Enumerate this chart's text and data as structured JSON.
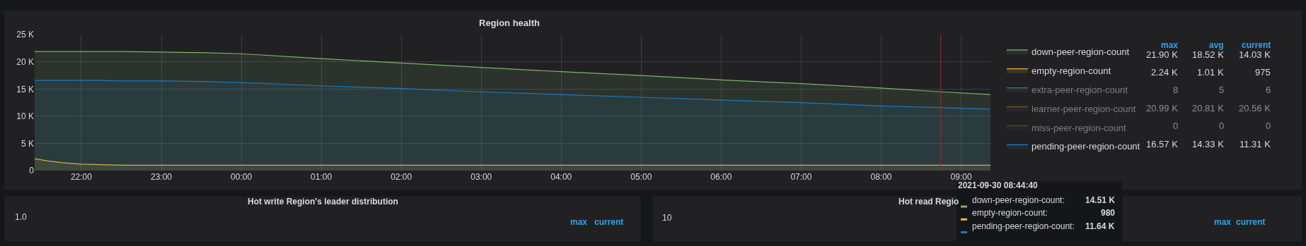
{
  "chart_data": [
    {
      "type": "area",
      "title": "Region health",
      "x": [
        "2021-09-29T21:25",
        "2021-09-29T21:35",
        "2021-09-29T21:45",
        "2021-09-29T22:00",
        "2021-09-29T22:15",
        "2021-09-29T22:30",
        "2021-09-29T23:00",
        "2021-09-29T23:30",
        "2021-09-30T00:00",
        "2021-09-30T01:00",
        "2021-09-30T02:00",
        "2021-09-30T03:00",
        "2021-09-30T04:00",
        "2021-09-30T05:00",
        "2021-09-30T06:00",
        "2021-09-30T07:00",
        "2021-09-30T08:00",
        "2021-09-30T08:44:40",
        "2021-09-30T09:22"
      ],
      "series": [
        {
          "name": "down-peer-region-count",
          "color": "#7eb26d",
          "values": [
            21900,
            21900,
            21900,
            21900,
            21900,
            21900,
            21800,
            21700,
            21500,
            20600,
            19800,
            19000,
            18200,
            17500,
            16700,
            16000,
            15200,
            14500,
            14000
          ]
        },
        {
          "name": "empty-region-count",
          "color": "#eab839",
          "values": [
            2200,
            1800,
            1500,
            1200,
            1100,
            1000,
            1000,
            1000,
            1000,
            1000,
            1000,
            1000,
            1000,
            1000,
            1000,
            1000,
            1000,
            1000,
            1000
          ]
        },
        {
          "name": "extra-peer-region-count",
          "color": "#6ed0e0",
          "values": [
            null,
            null,
            null,
            null,
            null,
            null,
            null,
            null,
            null,
            null,
            null,
            null,
            null,
            null,
            null,
            null,
            null,
            null,
            null
          ]
        },
        {
          "name": "learner-peer-region-count",
          "color": "#ef843c",
          "values": [
            null,
            null,
            null,
            null,
            null,
            null,
            null,
            null,
            null,
            null,
            null,
            null,
            null,
            null,
            null,
            null,
            null,
            null,
            null
          ]
        },
        {
          "name": "miss-peer-region-count",
          "color": "#e24d42",
          "values": [
            null,
            null,
            null,
            null,
            null,
            null,
            null,
            null,
            null,
            null,
            null,
            null,
            null,
            null,
            null,
            null,
            null,
            null,
            null
          ]
        },
        {
          "name": "pending-peer-region-count",
          "color": "#1f78c1",
          "values": [
            16600,
            16600,
            16600,
            16600,
            16600,
            16500,
            16500,
            16400,
            16200,
            15600,
            15100,
            14500,
            14000,
            13500,
            13000,
            12500,
            11900,
            11600,
            11300
          ]
        }
      ],
      "xlim": [
        "2021-09-29T21:25",
        "2021-09-30T09:22"
      ],
      "xticks": [
        {
          "value": "2021-09-29T22:00",
          "label": "22:00"
        },
        {
          "value": "2021-09-29T23:00",
          "label": "23:00"
        },
        {
          "value": "2021-09-30T00:00",
          "label": "00:00"
        },
        {
          "value": "2021-09-30T01:00",
          "label": "01:00"
        },
        {
          "value": "2021-09-30T02:00",
          "label": "02:00"
        },
        {
          "value": "2021-09-30T03:00",
          "label": "03:00"
        },
        {
          "value": "2021-09-30T04:00",
          "label": "04:00"
        },
        {
          "value": "2021-09-30T05:00",
          "label": "05:00"
        },
        {
          "value": "2021-09-30T06:00",
          "label": "06:00"
        },
        {
          "value": "2021-09-30T07:00",
          "label": "07:00"
        },
        {
          "value": "2021-09-30T08:00",
          "label": "08:00"
        },
        {
          "value": "2021-09-30T09:00",
          "label": "09:00"
        }
      ],
      "ylim": [
        0,
        25000
      ],
      "yticks": [
        0,
        {
          "value": 5000,
          "label": "5 K"
        },
        {
          "value": 10000,
          "label": "10 K"
        },
        {
          "value": 15000,
          "label": "15 K"
        },
        {
          "value": 20000,
          "label": "20 K"
        },
        {
          "value": 25000,
          "label": "25 K"
        }
      ],
      "ref_lines": [
        {
          "axis": "x",
          "value": "2021-09-30T08:44:40",
          "color": "#c4162a"
        }
      ],
      "grid": true,
      "legend": "right",
      "marker": "none",
      "line_style": "solid",
      "annotations": [
        "max",
        "avg",
        "current",
        "21.90 K",
        "18.52 K",
        "14.03 K",
        "2.24 K",
        "1.01 K",
        "975",
        "8",
        "5",
        "6",
        "20.99 K",
        "20.81 K",
        "20.56 K",
        "0",
        "0",
        "0",
        "16.57 K",
        "14.33 K",
        "11.31 K",
        "2021-09-30 08:44:40",
        "down-peer-region-count:",
        "14.51 K",
        "empty-region-count:",
        "980",
        "pending-peer-region-count:",
        "11.64 K"
      ]
    },
    {
      "type": "other",
      "title": "Hot write Region's leader distribution",
      "annotations": [
        "1.0",
        "max",
        "current"
      ]
    },
    {
      "type": "other",
      "title": "Hot read Regio",
      "annotations": [
        "10",
        "max",
        "current"
      ]
    }
  ]
}
